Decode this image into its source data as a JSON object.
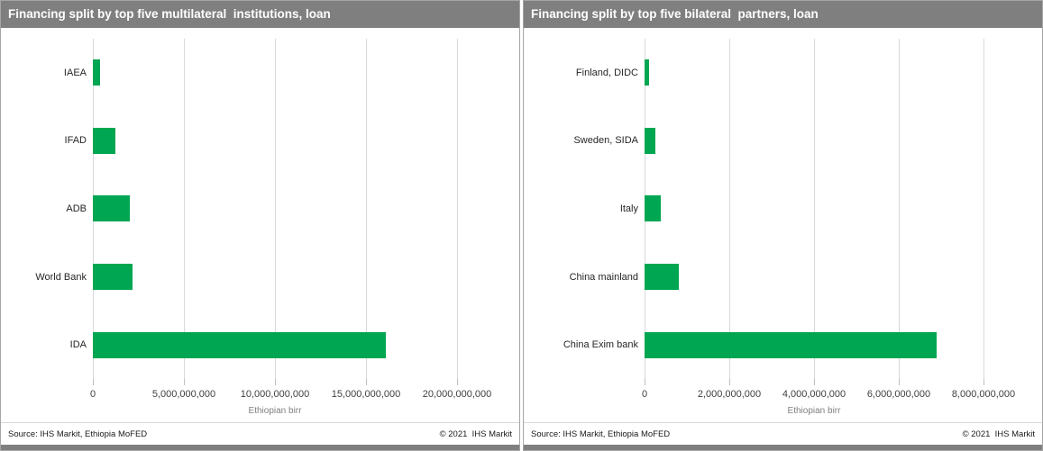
{
  "charts": [
    {
      "title": "Financing split by top five multilateral  institutions, loan",
      "source": "Source: IHS Markit, Ethiopia MoFED",
      "copyright": "© 2021  IHS Markit",
      "chart_data": {
        "type": "bar",
        "orientation": "horizontal",
        "categories": [
          "IAEA",
          "IFAD",
          "ADB",
          "World Bank",
          "IDA"
        ],
        "values": [
          400000000,
          1250000000,
          2050000000,
          2200000000,
          16100000000
        ],
        "title": "Financing split by top five multilateral institutions, loan",
        "xlabel": "Ethiopian birr",
        "ylabel": "",
        "xlim": [
          0,
          22500000000
        ],
        "tick_values": [
          0,
          5000000000,
          10000000000,
          15000000000,
          20000000000
        ],
        "tick_labels": [
          "0",
          "5,000,000,000",
          "10,000,000,000",
          "15,000,000,000",
          "20,000,000,000"
        ],
        "bar_color": "#00A651",
        "grid": true,
        "legend": "none"
      }
    },
    {
      "title": "Financing split by top five bilateral  partners, loan",
      "source": "Source: IHS Markit, Ethiopia MoFED",
      "copyright": "© 2021  IHS Markit",
      "chart_data": {
        "type": "bar",
        "orientation": "horizontal",
        "categories": [
          "Finland, DIDC",
          "Sweden, SIDA",
          "Italy",
          "China mainland",
          "China Exim bank"
        ],
        "values": [
          110000000,
          260000000,
          380000000,
          810000000,
          6900000000
        ],
        "title": "Financing split by top five bilateral partners, loan",
        "xlabel": "Ethiopian birr",
        "ylabel": "",
        "xlim": [
          0,
          9200000000
        ],
        "tick_values": [
          0,
          2000000000,
          4000000000,
          6000000000,
          8000000000
        ],
        "tick_labels": [
          "0",
          "2,000,000,000",
          "4,000,000,000",
          "6,000,000,000",
          "8,000,000,000"
        ],
        "bar_color": "#00A651",
        "grid": true,
        "legend": "none"
      }
    }
  ],
  "colors": {
    "title_bar_bg": "#7f7f7f",
    "title_text": "#ffffff",
    "bar_green": "#00A651",
    "gridline": "#d9d9d9",
    "tick_mark": "#bfbfbf",
    "tick_text": "#404040",
    "axis_title_text": "#7f7f7f",
    "footer_text": "#1a1a1a",
    "bottom_strip": "#7f7f7f",
    "panel_border": "#a6a6a6"
  }
}
